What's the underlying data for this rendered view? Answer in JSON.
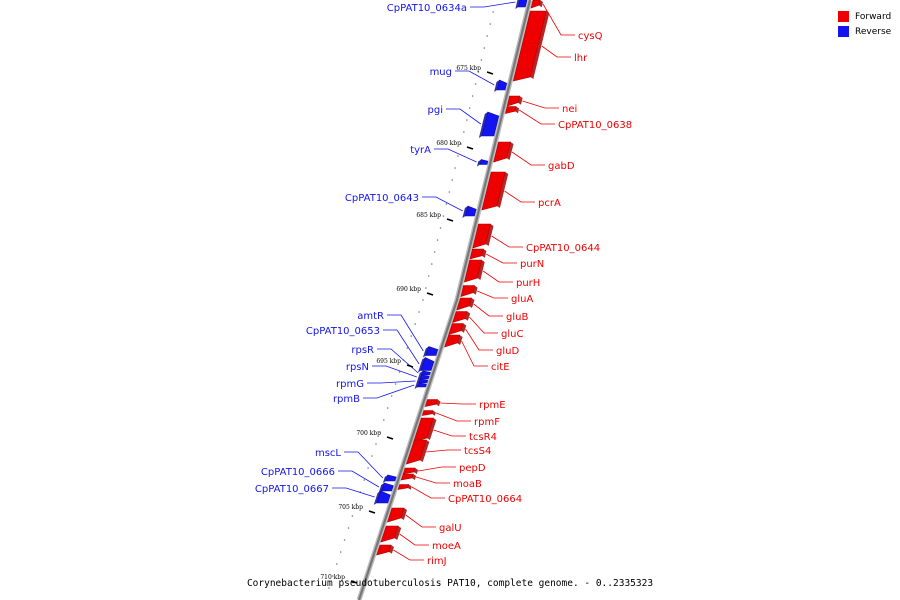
{
  "caption": "Corynebacterium pseudotuberculosis PAT10, complete genome. - 0..2335323",
  "legend": [
    {
      "label": "Forward",
      "color": "#ee0000"
    },
    {
      "label": "Reverse",
      "color": "#1414f0"
    }
  ],
  "colors": {
    "forward": "#ee0000",
    "reverse": "#1414f0",
    "backbone": "#777777"
  },
  "ticks": [
    "675 kbp",
    "680 kbp",
    "685 kbp",
    "690 kbp",
    "695 kbp",
    "700 kbp",
    "705 kbp",
    "710 kbp"
  ],
  "genes": [
    {
      "name": "CpPAT10_0634a",
      "strand": "reverse"
    },
    {
      "name": "cysQ",
      "strand": "forward"
    },
    {
      "name": "lhr",
      "strand": "forward"
    },
    {
      "name": "mug",
      "strand": "reverse"
    },
    {
      "name": "nei",
      "strand": "forward"
    },
    {
      "name": "CpPAT10_0638",
      "strand": "forward"
    },
    {
      "name": "pgi",
      "strand": "reverse"
    },
    {
      "name": "tyrA",
      "strand": "reverse"
    },
    {
      "name": "gabD",
      "strand": "forward"
    },
    {
      "name": "CpPAT10_0643",
      "strand": "reverse"
    },
    {
      "name": "pcrA",
      "strand": "forward"
    },
    {
      "name": "CpPAT10_0644",
      "strand": "forward"
    },
    {
      "name": "purN",
      "strand": "forward"
    },
    {
      "name": "purH",
      "strand": "forward"
    },
    {
      "name": "gluA",
      "strand": "forward"
    },
    {
      "name": "gluB",
      "strand": "forward"
    },
    {
      "name": "gluC",
      "strand": "forward"
    },
    {
      "name": "gluD",
      "strand": "forward"
    },
    {
      "name": "citE",
      "strand": "forward"
    },
    {
      "name": "amtR",
      "strand": "reverse"
    },
    {
      "name": "CpPAT10_0653",
      "strand": "reverse"
    },
    {
      "name": "rpsR",
      "strand": "reverse"
    },
    {
      "name": "rpsN",
      "strand": "reverse"
    },
    {
      "name": "rpmG",
      "strand": "reverse"
    },
    {
      "name": "rpmB",
      "strand": "reverse"
    },
    {
      "name": "rpmE",
      "strand": "forward"
    },
    {
      "name": "rpmF",
      "strand": "forward"
    },
    {
      "name": "tcsR4",
      "strand": "forward"
    },
    {
      "name": "tcsS4",
      "strand": "forward"
    },
    {
      "name": "pepD",
      "strand": "forward"
    },
    {
      "name": "moaB",
      "strand": "forward"
    },
    {
      "name": "CpPAT10_0664",
      "strand": "forward"
    },
    {
      "name": "mscL",
      "strand": "reverse"
    },
    {
      "name": "CpPAT10_0666",
      "strand": "reverse"
    },
    {
      "name": "CpPAT10_0667",
      "strand": "reverse"
    },
    {
      "name": "galU",
      "strand": "forward"
    },
    {
      "name": "moeA",
      "strand": "forward"
    },
    {
      "name": "rimJ",
      "strand": "forward"
    }
  ]
}
